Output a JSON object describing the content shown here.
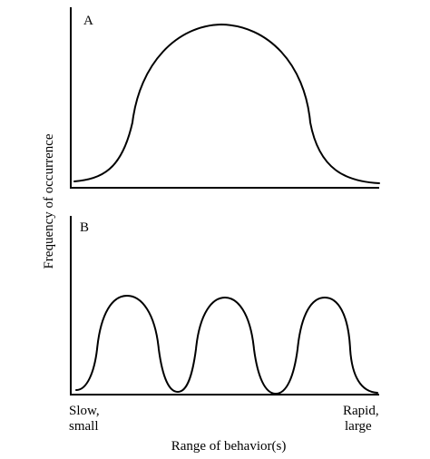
{
  "panels": [
    {
      "label": "A",
      "shape": "single broad bell",
      "peaks": 1
    },
    {
      "label": "B",
      "shape": "three narrow humps",
      "peaks": 3
    }
  ],
  "axes": {
    "ylabel": "Frequency of occurrence",
    "xlabel": "Range of behavior(s)",
    "x_left_line1": "Slow,",
    "x_left_line2": "small",
    "x_right_line1": "Rapid,",
    "x_right_line2": "large"
  },
  "colors": {
    "ink": "#000000",
    "background": "#ffffff"
  }
}
